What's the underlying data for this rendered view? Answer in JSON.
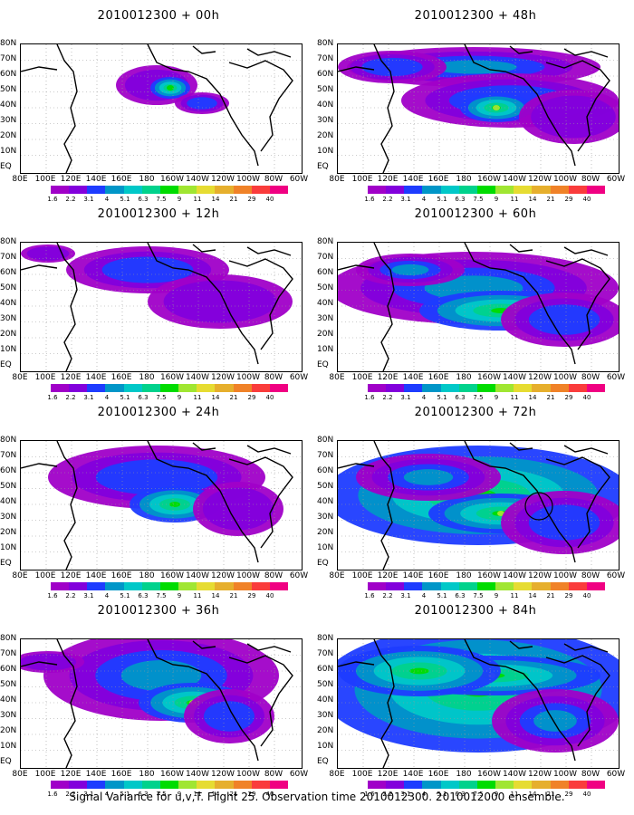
{
  "panels": [
    {
      "title": "2010012300 + 00h"
    },
    {
      "title": "2010012300 + 48h"
    },
    {
      "title": "2010012300 + 12h"
    },
    {
      "title": "2010012300 + 60h"
    },
    {
      "title": "2010012300 + 24h"
    },
    {
      "title": "2010012300 + 72h"
    },
    {
      "title": "2010012300 + 36h"
    },
    {
      "title": "2010012300 + 84h"
    }
  ],
  "lat_labels": [
    "80N",
    "70N",
    "60N",
    "50N",
    "40N",
    "30N",
    "20N",
    "10N",
    "EQ"
  ],
  "lon_labels": [
    "80E",
    "100E",
    "120E",
    "140E",
    "160E",
    "180",
    "160W",
    "140W",
    "120W",
    "100W",
    "80W",
    "60W"
  ],
  "colorbar": {
    "labels": [
      "1.6",
      "2.2",
      "3.1",
      "4",
      "5.1",
      "6.3",
      "7.5",
      "9",
      "11",
      "14",
      "21",
      "29",
      "40"
    ],
    "colors": [
      "#a000c8",
      "#8200dc",
      "#1e3cff",
      "#0096c8",
      "#00c8c8",
      "#00d28c",
      "#00dc00",
      "#a0e632",
      "#e6dc32",
      "#e6af2d",
      "#f08228",
      "#fa3c3c",
      "#f00082"
    ]
  },
  "caption": "Signal Variance for u,v,T. Flight 25. Observation time 2010012300. 2010012000 ensemble."
}
